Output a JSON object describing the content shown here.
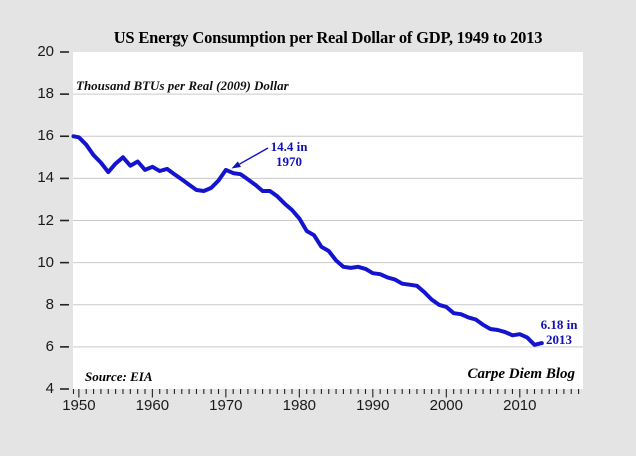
{
  "figure": {
    "title": "US Energy Consumption per Real Dollar of GDP, 1949 to 2013",
    "subtitle": "Thousand BTUs per Real (2009) Dollar",
    "source_note": "Source: EIA",
    "credit": "Carpe Diem Blog",
    "colors": {
      "background": "#E4E4E4",
      "plot_background": "#FFFFFF",
      "line": "#1414D0",
      "annotation": "#1111B8",
      "gridline": "#C9C9C9",
      "tick": "#222222"
    }
  },
  "callouts": {
    "peak": {
      "line1": "14.4 in",
      "line2": "1970"
    },
    "end": {
      "line1": "6.18 in",
      "line2": "2013"
    }
  },
  "chart_data": {
    "type": "line",
    "title": "US Energy Consumption per Real Dollar of GDP, 1949 to 2013",
    "ylabel": "Thousand BTUs per Real (2009) Dollar",
    "x": [
      1949,
      1950,
      1951,
      1952,
      1953,
      1954,
      1955,
      1956,
      1957,
      1958,
      1959,
      1960,
      1961,
      1962,
      1963,
      1964,
      1965,
      1966,
      1967,
      1968,
      1969,
      1970,
      1971,
      1972,
      1973,
      1974,
      1975,
      1976,
      1977,
      1978,
      1979,
      1980,
      1981,
      1982,
      1983,
      1984,
      1985,
      1986,
      1987,
      1988,
      1989,
      1990,
      1991,
      1992,
      1993,
      1994,
      1995,
      1996,
      1997,
      1998,
      1999,
      2000,
      2001,
      2002,
      2003,
      2004,
      2005,
      2006,
      2007,
      2008,
      2009,
      2010,
      2011,
      2012,
      2013
    ],
    "values": [
      16.0,
      15.95,
      15.6,
      15.1,
      14.75,
      14.3,
      14.7,
      15.0,
      14.6,
      14.8,
      14.4,
      14.55,
      14.35,
      14.45,
      14.2,
      13.95,
      13.7,
      13.45,
      13.4,
      13.55,
      13.9,
      14.4,
      14.25,
      14.2,
      13.95,
      13.7,
      13.4,
      13.4,
      13.15,
      12.8,
      12.5,
      12.1,
      11.5,
      11.3,
      10.75,
      10.55,
      10.1,
      9.8,
      9.75,
      9.8,
      9.7,
      9.5,
      9.45,
      9.3,
      9.2,
      9.0,
      8.95,
      8.9,
      8.6,
      8.25,
      8.0,
      7.9,
      7.6,
      7.55,
      7.4,
      7.3,
      7.05,
      6.85,
      6.8,
      6.7,
      6.55,
      6.6,
      6.45,
      6.1,
      6.18
    ],
    "xlim": [
      1949.2,
      2018.6
    ],
    "ylim": [
      4,
      20
    ],
    "y_ticks": [
      4,
      6,
      8,
      10,
      12,
      14,
      16,
      18,
      20
    ],
    "x_ticks": [
      1950,
      1960,
      1970,
      1980,
      1990,
      2000,
      2010
    ],
    "x_minor_range": [
      1949,
      2018
    ],
    "grid": "horizontal",
    "legend": "none",
    "annotations": [
      {
        "text": "14.4 in 1970",
        "year": 1970,
        "value": 14.4
      },
      {
        "text": "6.18 in 2013",
        "year": 2013,
        "value": 6.18
      }
    ]
  }
}
